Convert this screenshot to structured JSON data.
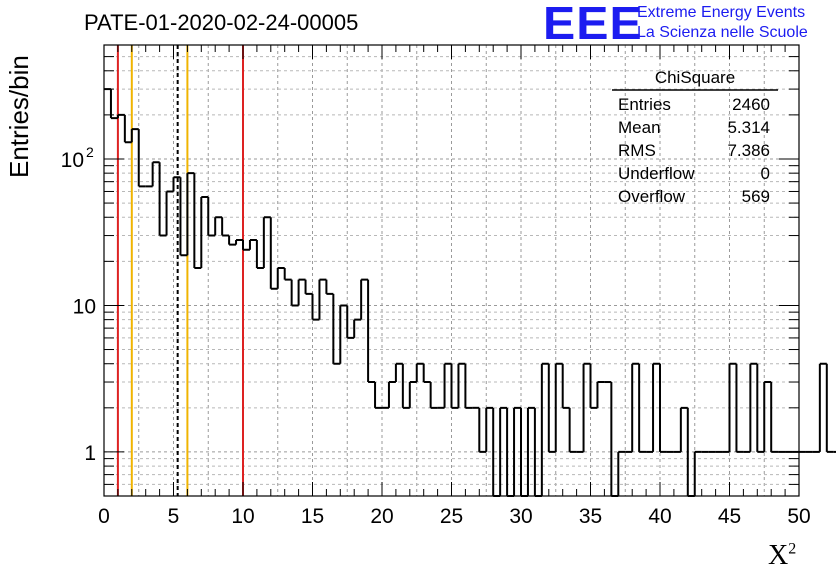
{
  "chart_data": {
    "type": "histogram",
    "title": "PATE-01-2020-02-24-00005",
    "xlabel": "X",
    "xlabel_sup": "2",
    "ylabel": "Entries/bin",
    "xlim": [
      0,
      50
    ],
    "ylim": [
      0.5,
      600
    ],
    "yscale": "log",
    "grid": true,
    "bin_width": 0.5,
    "x_ticks": [
      "0",
      "5",
      "10",
      "15",
      "20",
      "25",
      "30",
      "35",
      "40",
      "45",
      "50"
    ],
    "y_ticks": [
      {
        "value": 1,
        "label": "1"
      },
      {
        "value": 10,
        "label": "10"
      },
      {
        "value": 100,
        "label": "10",
        "sup": "2"
      }
    ],
    "bin_counts": [
      300,
      190,
      200,
      130,
      160,
      65,
      65,
      95,
      30,
      60,
      75,
      22,
      80,
      18,
      55,
      30,
      40,
      30,
      26,
      28,
      24,
      28,
      18,
      40,
      13,
      18,
      15,
      10,
      15,
      12,
      8,
      15,
      12,
      4,
      10,
      6,
      8,
      15,
      3,
      2,
      2,
      3,
      4,
      2,
      3,
      4,
      3,
      2,
      2,
      4,
      2,
      4,
      2,
      2,
      1,
      2,
      0,
      2,
      0,
      2,
      0,
      2,
      0,
      4,
      1,
      4,
      2,
      1,
      1,
      4,
      2,
      3,
      3,
      0,
      1,
      1,
      4,
      1,
      1,
      4,
      1,
      1,
      1,
      2,
      0,
      1,
      1,
      1,
      1,
      1,
      4,
      1,
      1,
      4,
      1,
      3,
      1,
      1,
      1,
      1,
      1,
      1,
      1,
      4,
      1,
      1,
      1,
      1,
      2,
      1,
      1,
      3,
      1,
      1,
      2,
      1,
      1,
      2,
      1,
      1,
      4,
      1,
      1,
      3,
      1,
      1,
      1,
      2,
      1,
      1,
      2,
      1,
      1,
      2,
      1,
      1,
      1,
      2,
      1,
      1,
      2,
      1,
      1,
      2,
      1,
      1,
      2,
      1,
      1,
      1
    ],
    "vertical_lines": [
      {
        "x": 1,
        "color": "#dd2222",
        "style": "solid"
      },
      {
        "x": 2,
        "color": "#f0b400",
        "style": "solid"
      },
      {
        "x": 5.3,
        "color": "#000000",
        "style": "dashed"
      },
      {
        "x": 6,
        "color": "#f0b400",
        "style": "solid"
      },
      {
        "x": 10,
        "color": "#dd2222",
        "style": "solid"
      }
    ],
    "stats": {
      "title": "ChiSquare",
      "rows": [
        {
          "label": "Entries",
          "value": "2460"
        },
        {
          "label": "Mean",
          "value": "5.314"
        },
        {
          "label": "RMS",
          "value": "7.386"
        },
        {
          "label": "Underflow",
          "value": "0"
        },
        {
          "label": "Overflow",
          "value": "569"
        }
      ]
    }
  },
  "logo": {
    "mark": "EEE",
    "line1": "Extreme Energy Events",
    "line2": "La Scienza nelle Scuole",
    "color": "#1c1cf0"
  }
}
